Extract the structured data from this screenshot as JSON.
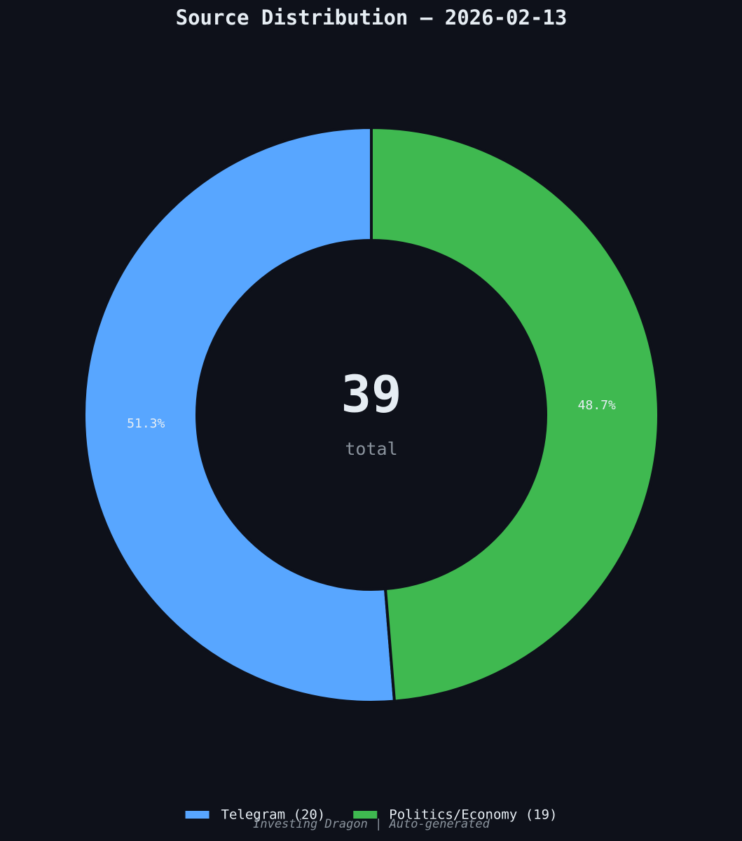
{
  "chart_data": {
    "type": "donut",
    "title": "Source Distribution — 2026-02-13",
    "categories": [
      "Telegram (20)",
      "Politics/Economy (19)"
    ],
    "values": [
      20,
      19
    ],
    "percent_labels": [
      "51.3%",
      "48.7%"
    ],
    "colors": [
      "#58a6ff",
      "#3fb950"
    ],
    "center_value": 39,
    "center_label": "total",
    "footer": "Investing Dragon | Auto-generated"
  }
}
